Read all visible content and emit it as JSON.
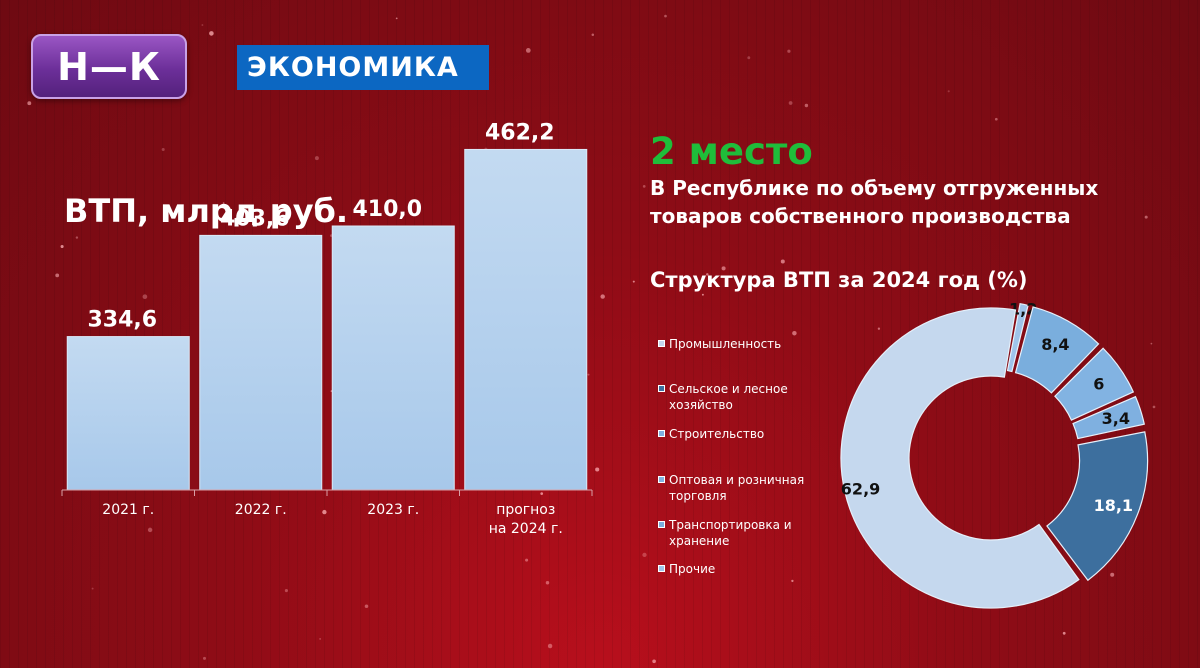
{
  "header": {
    "logo_text": "Н—К",
    "section_label": "ЭКОНОМИКА"
  },
  "rank": {
    "value": "2 место",
    "description": "В Республике по объему отгруженных товаров собственного производства"
  },
  "colors": {
    "bar_fill": "#b6d2ee",
    "rank_green": "#1fbd3a",
    "tag_blue": "#0c67c2"
  },
  "chart_data": [
    {
      "type": "bar",
      "title": "ВТП, млрд руб.",
      "categories": [
        "2021 г.",
        "2022 г.",
        "2023 г.",
        "прогноз на 2024 г."
      ],
      "category_lines": [
        [
          "2021 г."
        ],
        [
          "2022 г."
        ],
        [
          "2023 г."
        ],
        [
          "прогноз",
          "на 2024 г."
        ]
      ],
      "values": [
        334.6,
        403.6,
        410.0,
        462.2
      ],
      "value_labels": [
        "334,6",
        "403,6",
        "410,0",
        "462,2"
      ],
      "ylim": [
        230,
        470
      ],
      "grid": false
    },
    {
      "type": "pie",
      "variant": "donut",
      "title": "Структура ВТП за 2024 год (%)",
      "legend_position": "left",
      "slices": [
        {
          "label": "Промышленность",
          "value": 62.9,
          "value_label": "62,9",
          "color": "#c5d8ee"
        },
        {
          "label": "Сельское и лесное хозяйство",
          "value": 18.1,
          "value_label": "18,1",
          "color": "#3d6f9e"
        },
        {
          "label": "Строительство",
          "value": 3.4,
          "value_label": "3,4",
          "color": "#7fb0e0"
        },
        {
          "label": "Оптовая и розничная торговля",
          "value": 6.0,
          "value_label": "6",
          "color": "#82b3e2"
        },
        {
          "label": "Транспортировка и хранение",
          "value": 8.4,
          "value_label": "8,4",
          "color": "#7aaedd"
        },
        {
          "label": "Прочие",
          "value": 1.2,
          "value_label": "1,2",
          "color": "#9fc4ea"
        }
      ]
    }
  ]
}
